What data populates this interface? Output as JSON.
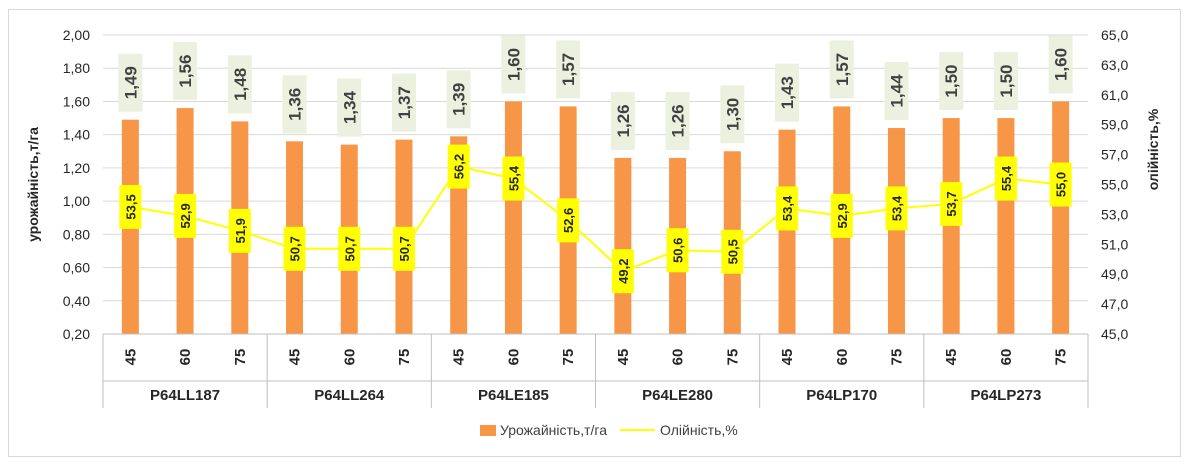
{
  "chart_data": {
    "type": "bar+line",
    "groups": [
      "P64LL187",
      "P64LL264",
      "P64LE185",
      "P64LE280",
      "P64LP170",
      "P64LP273"
    ],
    "subcategories": [
      "45",
      "60",
      "75"
    ],
    "series": [
      {
        "name": "Урожайність,т/га",
        "type": "bar",
        "axis": "left",
        "color": "#f79646",
        "values": [
          1.49,
          1.56,
          1.48,
          1.36,
          1.34,
          1.37,
          1.39,
          1.6,
          1.57,
          1.26,
          1.26,
          1.3,
          1.43,
          1.57,
          1.44,
          1.5,
          1.5,
          1.6
        ],
        "labels": [
          "1,49",
          "1,56",
          "1,48",
          "1,36",
          "1,34",
          "1,37",
          "1,39",
          "1,60",
          "1,57",
          "1,26",
          "1,26",
          "1,30",
          "1,43",
          "1,57",
          "1,44",
          "1,50",
          "1,50",
          "1,60"
        ]
      },
      {
        "name": "Олійність,%",
        "type": "line",
        "axis": "right",
        "color": "#ffff00",
        "values": [
          53.5,
          52.9,
          51.9,
          50.7,
          50.7,
          50.7,
          56.2,
          55.4,
          52.6,
          49.2,
          50.6,
          50.5,
          53.4,
          52.9,
          53.4,
          53.7,
          55.4,
          55.0
        ],
        "labels": [
          "53,5",
          "52,9",
          "51,9",
          "50,7",
          "50,7",
          "50,7",
          "56,2",
          "55,4",
          "52,6",
          "49,2",
          "50,6",
          "50,5",
          "53,4",
          "52,9",
          "53,4",
          "53,7",
          "55,4",
          "55,0"
        ]
      }
    ],
    "y_left": {
      "label": "урожайність,т/га",
      "ylim": [
        0.2,
        2.0
      ],
      "ticks": [
        "0,20",
        "0,40",
        "0,60",
        "0,80",
        "1,00",
        "1,20",
        "1,40",
        "1,60",
        "1,80",
        "2,00"
      ]
    },
    "y_right": {
      "label": "олійність,%",
      "ylim": [
        45.0,
        65.0
      ],
      "ticks": [
        "45,0",
        "47,0",
        "49,0",
        "51,0",
        "53,0",
        "55,0",
        "57,0",
        "59,0",
        "61,0",
        "63,0",
        "65,0"
      ]
    },
    "grid": true,
    "legend_position": "bottom",
    "bar_label_bg": "#ebf1de",
    "line_label_bg": "#ffff00"
  }
}
